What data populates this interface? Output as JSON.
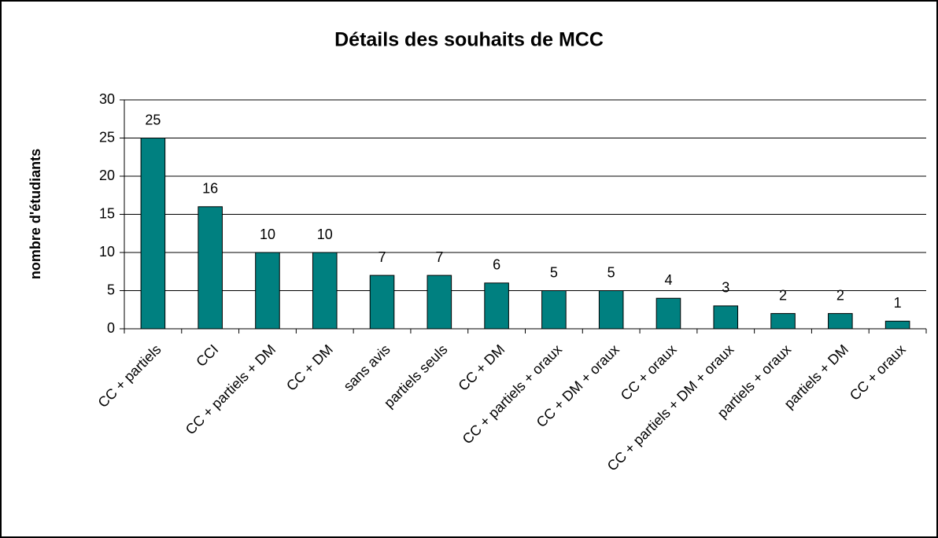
{
  "chart_data": {
    "type": "bar",
    "title": "Détails des souhaits de MCC",
    "y_label": "nombre d'étudiants",
    "categories": [
      "CC + partiels",
      "CCI",
      "CC + partiels + DM",
      "CC + DM",
      "sans avis",
      "partiels seuls",
      "CC + DM",
      "CC + partiels + oraux",
      "CC + DM + oraux",
      "CC + oraux",
      "CC + partiels + DM + oraux",
      "partiels + oraux",
      "partiels + DM",
      "CC + oraux"
    ],
    "values": [
      25,
      16,
      10,
      10,
      7,
      7,
      6,
      5,
      5,
      4,
      3,
      2,
      2,
      1
    ],
    "color": "#008080",
    "ylim": [
      0,
      30
    ],
    "yticks": [
      0,
      5,
      10,
      15,
      20,
      25,
      30
    ],
    "grid": true
  }
}
